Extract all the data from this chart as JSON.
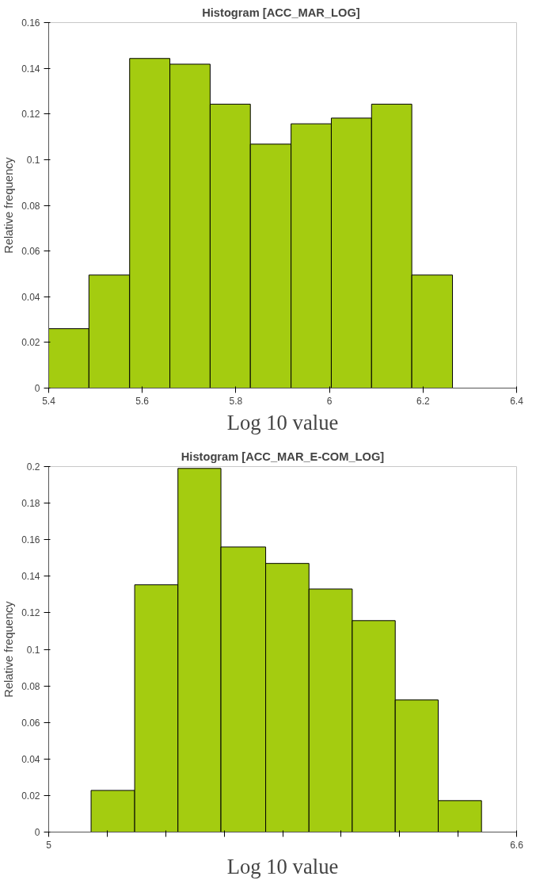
{
  "chart_data": [
    {
      "type": "histogram",
      "title": "Histogram  [ACC_MAR_LOG]",
      "xlabel": "Log 10 value",
      "ylabel": "Relative frequency",
      "color": "#a4cc10",
      "bins": [
        5.4,
        5.486,
        5.573,
        5.659,
        5.745,
        5.831,
        5.918,
        6.004,
        6.09,
        6.176,
        6.263,
        6.4
      ],
      "values": [
        0.026,
        0.0495,
        0.1443,
        0.1418,
        0.1243,
        0.1068,
        0.1157,
        0.1182,
        0.1243,
        0.0495,
        0
      ],
      "xlim": [
        5.4,
        6.4
      ],
      "ylim": [
        0,
        0.16
      ],
      "xticks": [
        5.4,
        5.6,
        5.8,
        {
          "value": 6,
          "label": "6"
        },
        6.2,
        6.4
      ],
      "yticks": [
        0,
        0.02,
        0.04,
        0.06,
        0.08,
        {
          "value": 0.1,
          "label": "0.1"
        },
        0.12,
        0.14,
        0.16
      ]
    },
    {
      "type": "histogram",
      "title": "Histogram [ACC_MAR_E-COM_LOG]",
      "xlabel": "Log 10 value",
      "ylabel": "Relative frequency",
      "color": "#a4cc10",
      "bins": [
        5.0,
        5.145,
        5.294,
        5.442,
        5.589,
        5.742,
        5.89,
        6.038,
        6.185,
        6.332,
        6.48,
        6.6
      ],
      "values": [
        0,
        0.0228,
        0.1353,
        0.199,
        0.156,
        0.147,
        0.133,
        0.1157,
        0.0723,
        0.0172,
        0
      ],
      "xlim": [
        5.0,
        6.6
      ],
      "ylim": [
        0,
        0.2
      ],
      "xticks": [
        5,
        {
          "value": 5.2,
          "label": null
        },
        {
          "value": 5.4,
          "label": null
        },
        {
          "value": 5.6,
          "label": null
        },
        {
          "value": 5.8,
          "label": null
        },
        {
          "value": 6.0,
          "label": null
        },
        {
          "value": 6.2,
          "label": null
        },
        {
          "value": 6.4,
          "label": null
        },
        6.6
      ],
      "yticks": [
        0,
        0.02,
        0.04,
        0.06,
        0.08,
        {
          "value": 0.1,
          "label": "0.1"
        },
        0.12,
        0.14,
        0.16,
        0.18,
        0.2
      ]
    }
  ]
}
